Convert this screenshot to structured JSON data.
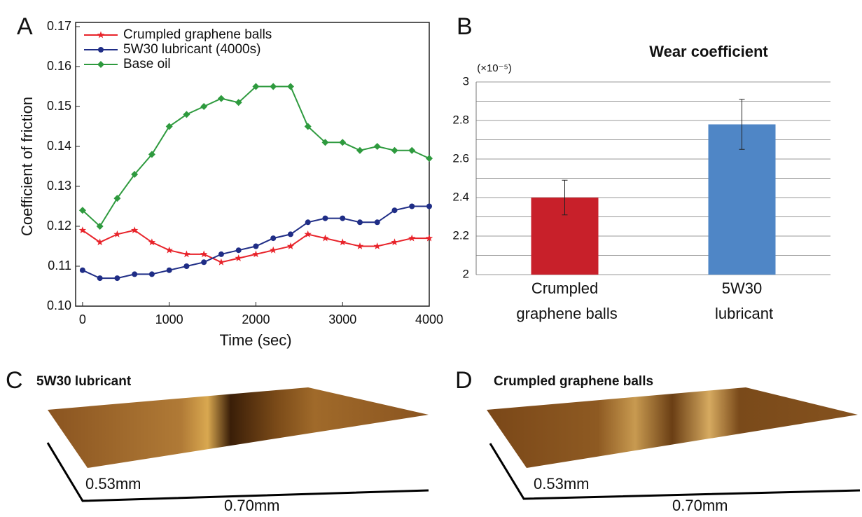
{
  "chart_data": [
    {
      "type": "line",
      "panel_label": "A",
      "x_label": "Time (sec)",
      "y_label": "Coefficient of friction",
      "x": [
        0,
        200,
        400,
        600,
        800,
        1000,
        1200,
        1400,
        1600,
        1800,
        2000,
        2200,
        2400,
        2600,
        2800,
        3000,
        3200,
        3400,
        3600,
        3800,
        4000
      ],
      "series": [
        {
          "name": "Crumpled graphene balls",
          "color": "#e8232a",
          "marker": "star",
          "values": [
            0.119,
            0.116,
            0.118,
            0.119,
            0.116,
            0.114,
            0.113,
            0.113,
            0.111,
            0.112,
            0.113,
            0.114,
            0.115,
            0.118,
            0.117,
            0.116,
            0.115,
            0.115,
            0.116,
            0.117,
            0.117
          ]
        },
        {
          "name": "5W30 lubricant (4000s)",
          "color": "#1f2d86",
          "marker": "circle",
          "values": [
            0.109,
            0.107,
            0.107,
            0.108,
            0.108,
            0.109,
            0.11,
            0.111,
            0.113,
            0.114,
            0.115,
            0.117,
            0.118,
            0.121,
            0.122,
            0.122,
            0.121,
            0.121,
            0.124,
            0.125,
            0.125
          ]
        },
        {
          "name": "Base oil",
          "color": "#2e9a3e",
          "marker": "diamond",
          "values": [
            0.124,
            0.12,
            0.127,
            0.133,
            0.138,
            0.145,
            0.148,
            0.15,
            0.152,
            0.151,
            0.155,
            0.155,
            0.155,
            0.145,
            0.141,
            0.141,
            0.139,
            0.14,
            0.139,
            0.139,
            0.137
          ]
        }
      ],
      "xlim": [
        -80,
        4000
      ],
      "xticks": [
        0,
        1000,
        2000,
        3000,
        4000
      ],
      "ylim": [
        0.1,
        0.17
      ],
      "yticks": [
        {
          "value": 0.1,
          "label": "0.10"
        },
        0.11,
        0.12,
        0.13,
        0.14,
        0.15,
        0.16,
        0.17
      ],
      "legend": "upper left",
      "grid": false
    },
    {
      "type": "bar",
      "panel_label": "B",
      "title": "Wear coefficient",
      "y_unit": "(×10⁻⁵)",
      "categories": [
        "Crumpled graphene balls",
        "5W30 lubricant"
      ],
      "values": [
        2.4,
        2.78
      ],
      "errors": [
        0.09,
        0.13
      ],
      "colors": [
        "#c8202a",
        "#4f86c6"
      ],
      "ylim": [
        2,
        3
      ],
      "yticks": [
        2,
        2.2,
        2.4,
        2.6,
        2.8,
        3
      ],
      "yminor": [
        2.1,
        2.3,
        2.5,
        2.7,
        2.9
      ],
      "grid": true
    }
  ],
  "images": [
    {
      "panel_label": "C",
      "title": "5W30 lubricant",
      "depth_label": "0.53mm",
      "width_label": "0.70mm"
    },
    {
      "panel_label": "D",
      "title": "Crumpled graphene balls",
      "depth_label": "0.53mm",
      "width_label": "0.70mm"
    }
  ]
}
